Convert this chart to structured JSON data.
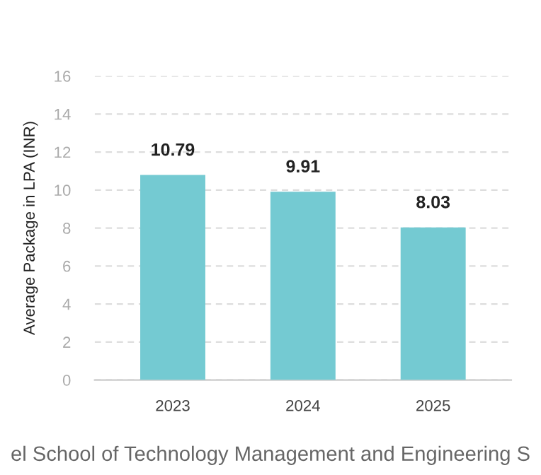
{
  "chart_data": {
    "type": "bar",
    "categories": [
      "2023",
      "2024",
      "2025"
    ],
    "values": [
      10.79,
      9.91,
      8.03
    ],
    "color": "#74cad2",
    "ylabel": "Average Package in LPA (INR)",
    "ylim": [
      0,
      16
    ],
    "yticks": [
      0,
      2,
      4,
      6,
      8,
      10,
      12,
      14,
      16
    ],
    "grid": "y",
    "data_labels": true,
    "annotations": [
      "el School of Technology Management and Engineering S"
    ]
  }
}
